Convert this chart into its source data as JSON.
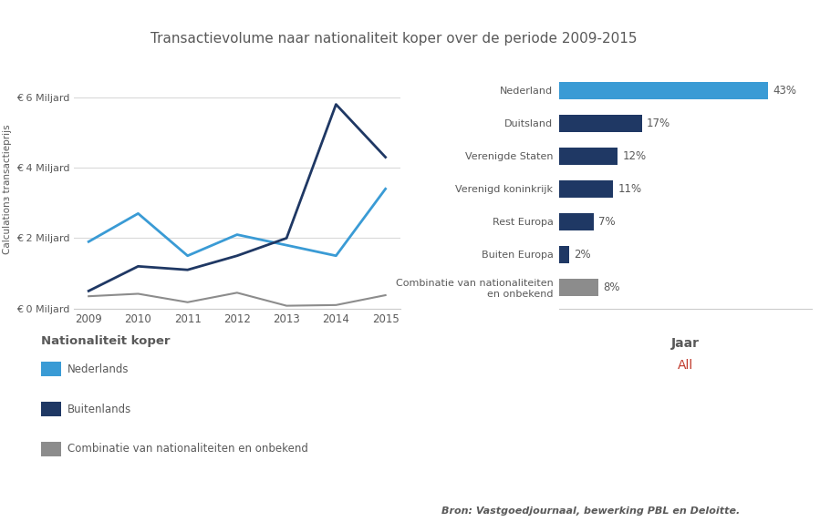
{
  "title": "Transactievolume naar nationaliteit koper over de periode 2009-2015",
  "years": [
    2009,
    2010,
    2011,
    2012,
    2013,
    2014,
    2015
  ],
  "line_nederlands": [
    1.9,
    2.7,
    1.5,
    2.1,
    1.8,
    1.5,
    3.4
  ],
  "line_buitenlands": [
    0.5,
    1.2,
    1.1,
    1.5,
    2.0,
    5.8,
    4.3
  ],
  "line_combinatie": [
    0.35,
    0.42,
    0.18,
    0.45,
    0.08,
    0.1,
    0.38
  ],
  "color_nederlands": "#3a9bd5",
  "color_buitenlands": "#1f3864",
  "color_combinatie": "#8c8c8c",
  "ylabel": "Calculationз transactieprijs",
  "yticks": [
    0,
    2,
    4,
    6
  ],
  "ytick_labels": [
    "€ 0 Miljard",
    "€ 2 Miljard",
    "€ 4 Miljard",
    "€ 6 Miljard"
  ],
  "ylim": [
    0,
    6.8
  ],
  "bar_categories": [
    "Nederland",
    "Duitsland",
    "Verenigde Staten",
    "Verenigd koninkrijk",
    "Rest Europa",
    "Buiten Europa",
    "Combinatie van nationaliteiten\nen onbekend"
  ],
  "bar_values": [
    43,
    17,
    12,
    11,
    7,
    2,
    8
  ],
  "bar_colors": [
    "#3a9bd5",
    "#1f3864",
    "#1f3864",
    "#1f3864",
    "#1f3864",
    "#1f3864",
    "#8c8c8c"
  ],
  "bar_labels": [
    "43%",
    "17%",
    "12%",
    "11%",
    "7%",
    "2%",
    "8%"
  ],
  "jaar_label": "Jaar",
  "jaar_value": "All",
  "source_text": "Bron: Vastgoedjournaal, bewerking PBL en Deloitte.",
  "legend_title": "Nationaliteit koper",
  "legend_entries": [
    "Nederlands",
    "Buitenlands",
    "Combinatie van nationaliteiten en onbekend"
  ],
  "background_color": "#ffffff",
  "text_color": "#595959",
  "title_color": "#595959",
  "grid_color": "#d9d9d9",
  "spine_color": "#cccccc"
}
